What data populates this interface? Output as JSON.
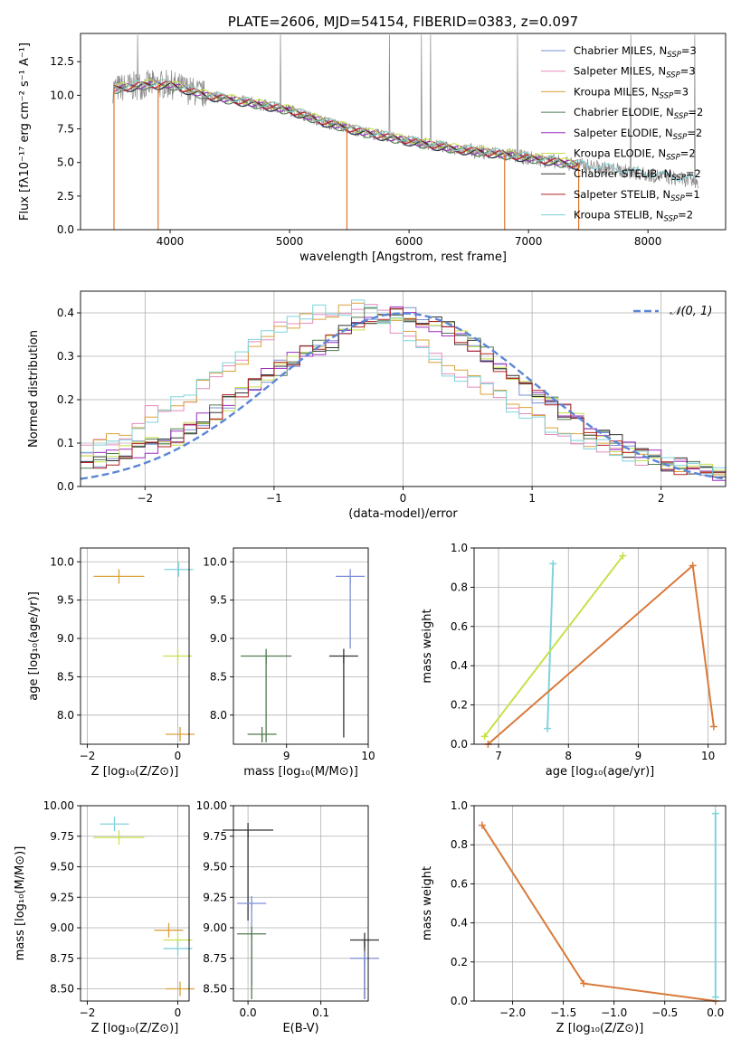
{
  "chart_data": [
    {
      "id": "spectrum",
      "type": "line",
      "title": "PLATE=2606, MJD=54154, FIBERID=0383, z=0.097",
      "xlabel": "wavelength [Angstrom, rest frame]",
      "ylabel": "Flux [fλ10⁻¹⁷ erg cm⁻² s⁻¹ A⁻¹]",
      "xlim": [
        3250,
        8650
      ],
      "ylim": [
        0,
        14.6
      ],
      "xticks": [
        4000,
        5000,
        6000,
        7000,
        8000
      ],
      "yticks": [
        0.0,
        2.5,
        5.0,
        7.5,
        10.0,
        12.5
      ],
      "data": {
        "x": [
          3550,
          3800,
          4000,
          4300,
          4700,
          5000,
          5300,
          5600,
          6000,
          6400,
          6800,
          7200,
          7600,
          8000,
          8400
        ],
        "y": [
          10.5,
          10.8,
          10.8,
          10.0,
          9.4,
          8.9,
          8.0,
          7.3,
          6.6,
          6.0,
          5.6,
          5.1,
          4.6,
          4.1,
          3.6
        ]
      },
      "model_breaks": [
        {
          "x": 3530,
          "y": 0
        },
        {
          "x": 3900,
          "y": 0
        },
        {
          "x": 5480,
          "y": 0
        },
        {
          "x": 6800,
          "y": 0
        },
        {
          "x": 7420,
          "y": 0
        }
      ],
      "legend_position": "upper right",
      "legend": [
        {
          "label": "Chabrier MILES, N",
          "sub": "SSP",
          "suffix": "=3",
          "color": "#7b8fd6"
        },
        {
          "label": "Salpeter MILES, N",
          "sub": "SSP",
          "suffix": "=3",
          "color": "#e48bbf"
        },
        {
          "label": "Kroupa MILES, N",
          "sub": "SSP",
          "suffix": "=3",
          "color": "#d9a23a"
        },
        {
          "label": "Chabrier ELODIE, N",
          "sub": "SSP",
          "suffix": "=2",
          "color": "#4f7a4f"
        },
        {
          "label": "Salpeter ELODIE, N",
          "sub": "SSP",
          "suffix": "=2",
          "color": "#9b2fbf"
        },
        {
          "label": "Kroupa ELODIE, N",
          "sub": "SSP",
          "suffix": "=2",
          "color": "#c8e04a"
        },
        {
          "label": "Chabrier STELIB, N",
          "sub": "SSP",
          "suffix": "=2",
          "color": "#333333"
        },
        {
          "label": "Salpeter STELIB, N",
          "sub": "SSP",
          "suffix": "=1",
          "color": "#b22222"
        },
        {
          "label": "Kroupa STELIB, N",
          "sub": "SSP",
          "suffix": "=2",
          "color": "#7fd3db"
        }
      ]
    },
    {
      "id": "residuals",
      "type": "line",
      "xlabel": "(data-model)/error",
      "ylabel": "Normed distribution",
      "xlim": [
        -2.5,
        2.5
      ],
      "ylim": [
        0,
        0.45
      ],
      "xticks": [
        -2,
        -1,
        0,
        1,
        2
      ],
      "yticks": [
        0.0,
        0.1,
        0.2,
        0.3,
        0.4
      ],
      "reference": {
        "label": "𝒩(0, 1)",
        "color": "#5b86d6",
        "mu": 0,
        "sigma": 1
      },
      "legend_position": "upper right",
      "hist_narrow": {
        "centers": [
          -2.3,
          -2.0,
          -1.7,
          -1.4,
          -1.1,
          -0.8,
          -0.5,
          -0.3,
          0.0,
          0.3,
          0.6,
          0.9,
          1.2,
          1.5,
          1.8,
          2.1,
          2.4
        ],
        "values": [
          0.09,
          0.16,
          0.2,
          0.27,
          0.33,
          0.39,
          0.41,
          0.42,
          0.36,
          0.28,
          0.24,
          0.18,
          0.13,
          0.1,
          0.07,
          0.05,
          0.03
        ]
      },
      "hist_wide": {
        "centers": [
          -2.3,
          -2.0,
          -1.7,
          -1.4,
          -1.1,
          -0.8,
          -0.5,
          -0.3,
          0.0,
          0.3,
          0.6,
          0.9,
          1.2,
          1.5,
          1.8,
          2.1,
          2.4
        ],
        "values": [
          0.06,
          0.09,
          0.12,
          0.18,
          0.25,
          0.3,
          0.34,
          0.39,
          0.4,
          0.37,
          0.32,
          0.24,
          0.18,
          0.12,
          0.08,
          0.05,
          0.03
        ]
      }
    },
    {
      "id": "age-vs-Z",
      "type": "scatter",
      "xlabel": "Z [log₁₀(Z/Z⊙)]",
      "ylabel": "age  [log₁₀(age/yr)]",
      "xlim": [
        -2.15,
        0.25
      ],
      "ylim": [
        7.62,
        10.18
      ],
      "xticks": [
        -2,
        0
      ],
      "yticks": [
        8.0,
        8.5,
        9.0,
        9.5,
        10.0
      ],
      "points": [
        {
          "x": -1.3,
          "y": 9.81
        },
        {
          "x": 0.0,
          "y": 8.77
        },
        {
          "x": 0.02,
          "y": 9.9
        },
        {
          "x": 0.05,
          "y": 7.75
        }
      ]
    },
    {
      "id": "age-vs-mass",
      "type": "scatter",
      "xlabel": "mass [log₁₀(M/M⊙)]",
      "xlim": [
        8.35,
        10.0
      ],
      "ylim": [
        7.62,
        10.18
      ],
      "xticks": [
        9,
        10
      ],
      "yticks": [
        8.0,
        8.5,
        9.0,
        9.5,
        10.0
      ],
      "points": [
        {
          "x": 8.75,
          "y": 8.77
        },
        {
          "x": 9.7,
          "y": 8.77
        },
        {
          "x": 9.78,
          "y": 9.81
        },
        {
          "x": 8.7,
          "y": 7.75
        }
      ]
    },
    {
      "id": "weight-vs-age",
      "type": "line",
      "xlabel": "age  [log₁₀(age/yr)]",
      "ylabel": "mass weight",
      "xlim": [
        6.65,
        10.25
      ],
      "ylim": [
        0,
        1
      ],
      "xticks": [
        7,
        8,
        9,
        10
      ],
      "yticks": [
        0.0,
        0.2,
        0.4,
        0.6,
        0.8,
        1.0
      ],
      "series": [
        {
          "color": "#7fd3db",
          "x": [
            7.7,
            7.78
          ],
          "y": [
            0.08,
            0.92
          ]
        },
        {
          "color": "#c8e04a",
          "x": [
            6.8,
            8.78
          ],
          "y": [
            0.04,
            0.96
          ]
        },
        {
          "color": "#d97a3a",
          "x": [
            6.85,
            9.78,
            10.08
          ],
          "y": [
            0.0,
            0.91,
            0.09
          ]
        }
      ]
    },
    {
      "id": "mass-vs-Z",
      "type": "scatter",
      "xlabel": "Z [log₁₀(Z/Z⊙)]",
      "ylabel": "mass [log₁₀(M/M⊙)]",
      "xlim": [
        -2.15,
        0.25
      ],
      "ylim": [
        8.4,
        10.0
      ],
      "xticks": [
        -2,
        0
      ],
      "yticks": [
        8.5,
        8.75,
        9.0,
        9.25,
        9.5,
        9.75,
        10.0
      ],
      "points": [
        {
          "x": -1.3,
          "y": 9.74
        },
        {
          "x": -1.4,
          "y": 9.85
        },
        {
          "x": -0.2,
          "y": 8.98
        },
        {
          "x": 0.0,
          "y": 8.9
        },
        {
          "x": 0.0,
          "y": 8.83
        },
        {
          "x": 0.05,
          "y": 8.5
        }
      ]
    },
    {
      "id": "mass-vs-EBV",
      "type": "scatter",
      "xlabel": "E(B-V)",
      "xlim": [
        -0.02,
        0.165
      ],
      "ylim": [
        8.4,
        10.0
      ],
      "xticks": [
        0.0,
        0.1
      ],
      "yticks": [
        8.5,
        8.75,
        9.0,
        9.25,
        9.5,
        9.75,
        10.0
      ],
      "points": [
        {
          "x": 0.0,
          "y": 9.8
        },
        {
          "x": 0.005,
          "y": 9.2
        },
        {
          "x": 0.005,
          "y": 8.95
        },
        {
          "x": 0.16,
          "y": 8.9
        },
        {
          "x": 0.16,
          "y": 8.75
        }
      ]
    },
    {
      "id": "weight-vs-Z",
      "type": "line",
      "xlabel": "Z [log₁₀(Z/Z⊙)]",
      "ylabel": "mass weight",
      "xlim": [
        -2.38,
        0.1
      ],
      "ylim": [
        0,
        1
      ],
      "xticks": [
        -2.0,
        -1.5,
        -1.0,
        -0.5,
        0.0
      ],
      "yticks": [
        0.0,
        0.2,
        0.4,
        0.6,
        0.8,
        1.0
      ],
      "series": [
        {
          "color": "#d97a3a",
          "x": [
            -2.3,
            -1.3,
            0.0
          ],
          "y": [
            0.9,
            0.09,
            0.0
          ]
        },
        {
          "color": "#7fd3db",
          "x": [
            0.0,
            0.0
          ],
          "y": [
            0.02,
            0.96
          ]
        }
      ]
    }
  ]
}
